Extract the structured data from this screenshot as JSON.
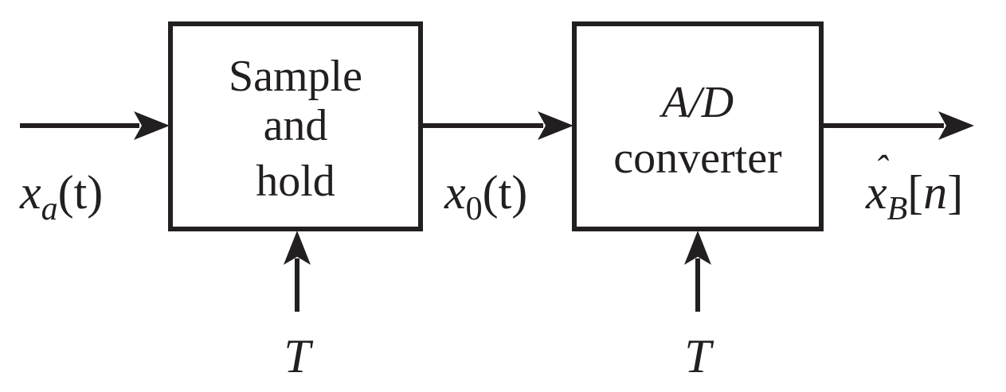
{
  "blocks": {
    "sample_hold": [
      "Sample",
      "and",
      "hold"
    ],
    "adc": {
      "line1": "A/D",
      "line2": "converter"
    }
  },
  "signals": {
    "input": {
      "base": "x",
      "sub": "a",
      "arg": "(t)"
    },
    "middle": {
      "base": "x",
      "sub": "0",
      "arg": "(t)"
    },
    "output": {
      "hat": "ˆ",
      "base": "x",
      "sub": "B",
      "arg": "[n]"
    }
  },
  "control": {
    "sample_hold_clock": "T",
    "adc_clock": "T"
  },
  "colors": {
    "ink": "#231f20",
    "background": "#ffffff"
  }
}
